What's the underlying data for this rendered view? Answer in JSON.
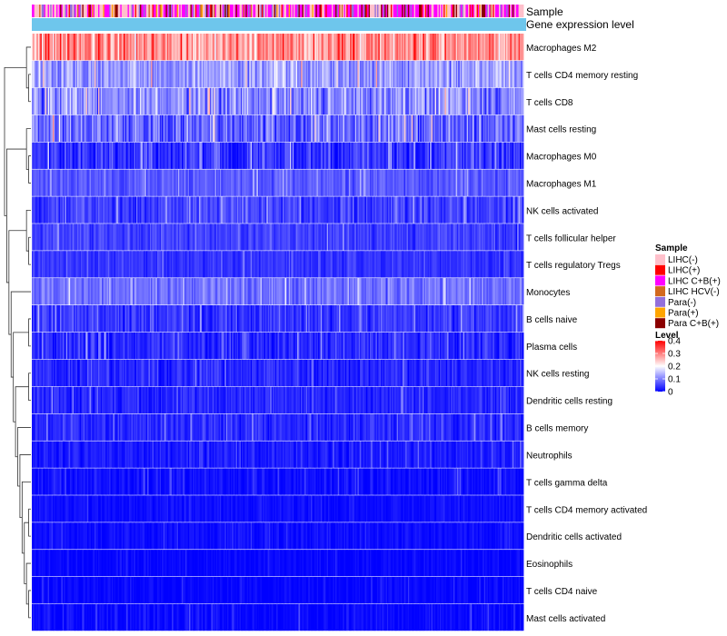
{
  "chart_data": {
    "type": "heatmap",
    "title": "",
    "annotation_tracks": [
      {
        "label": "Sample",
        "kind": "categorical"
      },
      {
        "label": "Gene expression level",
        "kind": "constant",
        "color": "#6ec6ec"
      }
    ],
    "rows": [
      {
        "label": "Macrophages M2",
        "mean": 0.28,
        "spread": 0.1
      },
      {
        "label": "T cells CD4 memory resting",
        "mean": 0.12,
        "spread": 0.08
      },
      {
        "label": "T cells CD8",
        "mean": 0.11,
        "spread": 0.09
      },
      {
        "label": "Mast cells resting",
        "mean": 0.08,
        "spread": 0.09
      },
      {
        "label": "Macrophages M0",
        "mean": 0.04,
        "spread": 0.07
      },
      {
        "label": "Macrophages M1",
        "mean": 0.07,
        "spread": 0.04
      },
      {
        "label": "NK cells activated",
        "mean": 0.05,
        "spread": 0.05
      },
      {
        "label": "T cells follicular helper",
        "mean": 0.05,
        "spread": 0.04
      },
      {
        "label": "T cells regulatory  Tregs",
        "mean": 0.04,
        "spread": 0.03
      },
      {
        "label": "Monocytes",
        "mean": 0.09,
        "spread": 0.05
      },
      {
        "label": "B cells naive",
        "mean": 0.04,
        "spread": 0.05
      },
      {
        "label": "Plasma cells",
        "mean": 0.03,
        "spread": 0.05
      },
      {
        "label": "NK cells resting",
        "mean": 0.03,
        "spread": 0.04
      },
      {
        "label": "Dendritic cells resting",
        "mean": 0.03,
        "spread": 0.04
      },
      {
        "label": "B cells memory",
        "mean": 0.03,
        "spread": 0.04
      },
      {
        "label": "Neutrophils",
        "mean": 0.02,
        "spread": 0.03
      },
      {
        "label": "T cells gamma delta",
        "mean": 0.01,
        "spread": 0.03
      },
      {
        "label": "T cells CD4 memory activated",
        "mean": 0.01,
        "spread": 0.02
      },
      {
        "label": "Dendritic cells activated",
        "mean": 0.01,
        "spread": 0.02
      },
      {
        "label": "Eosinophils",
        "mean": 0.005,
        "spread": 0.02
      },
      {
        "label": "T cells CD4 naive",
        "mean": 0.004,
        "spread": 0.02
      },
      {
        "label": "Mast cells activated",
        "mean": 0.006,
        "spread": 0.03
      }
    ],
    "n_samples": 400,
    "legend_sample": {
      "title": "Sample",
      "entries": [
        {
          "label": "LIHC(-)",
          "color": "#ffc0cb"
        },
        {
          "label": "LIHC(+)",
          "color": "#ff0000"
        },
        {
          "label": "LIHC C+B(+)",
          "color": "#ff00ff"
        },
        {
          "label": "LIHC HCV(-)",
          "color": "#d2691e"
        },
        {
          "label": "Para(-)",
          "color": "#9370db"
        },
        {
          "label": "Para(+)",
          "color": "#ffa500"
        },
        {
          "label": "Para C+B(+)",
          "color": "#8b0000"
        }
      ]
    },
    "legend_level": {
      "title": "Level",
      "range": [
        0,
        0.4
      ],
      "ticks": [
        "0",
        "0.1",
        "0.2",
        "0.3",
        "0.4"
      ],
      "colors": {
        "low": "#0000ff",
        "mid": "#ffffff",
        "high": "#ff0000"
      }
    }
  }
}
